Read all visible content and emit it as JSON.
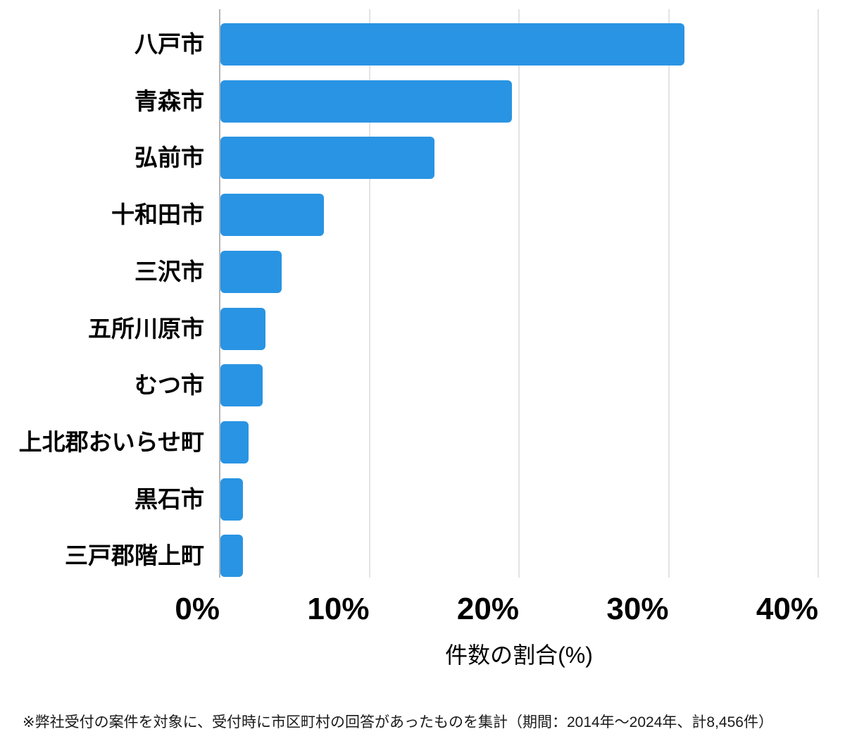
{
  "chart_data": {
    "type": "bar",
    "orientation": "horizontal",
    "title": "",
    "categories": [
      "八戸市",
      "青森市",
      "弘前市",
      "十和田市",
      "三沢市",
      "五所川原市",
      "むつ市",
      "上北郡おいらせ町",
      "黒石市",
      "三戸郡階上町"
    ],
    "values": [
      31.0,
      19.5,
      14.3,
      6.9,
      4.1,
      3.0,
      2.8,
      1.9,
      1.5,
      1.5
    ],
    "xlabel": "件数の割合(%)",
    "ylabel": "",
    "xlim": [
      0,
      40
    ],
    "x_tick_labels": [
      "0%",
      "10%",
      "20%",
      "30%",
      "40%"
    ],
    "x_tick_values": [
      0,
      10,
      20,
      30,
      40
    ],
    "grid": true,
    "legend": false,
    "colors": {
      "bar": "#2994e3",
      "gridline": "#e3e3e3",
      "axis_line": "#b4b4b4",
      "text": "#000000",
      "footnote": "#1a1a1a"
    }
  },
  "footnote": "※弊社受付の案件を対象に、受付時に市区町村の回答があったものを集計（期間：2014年～2024年、計8,456件）"
}
